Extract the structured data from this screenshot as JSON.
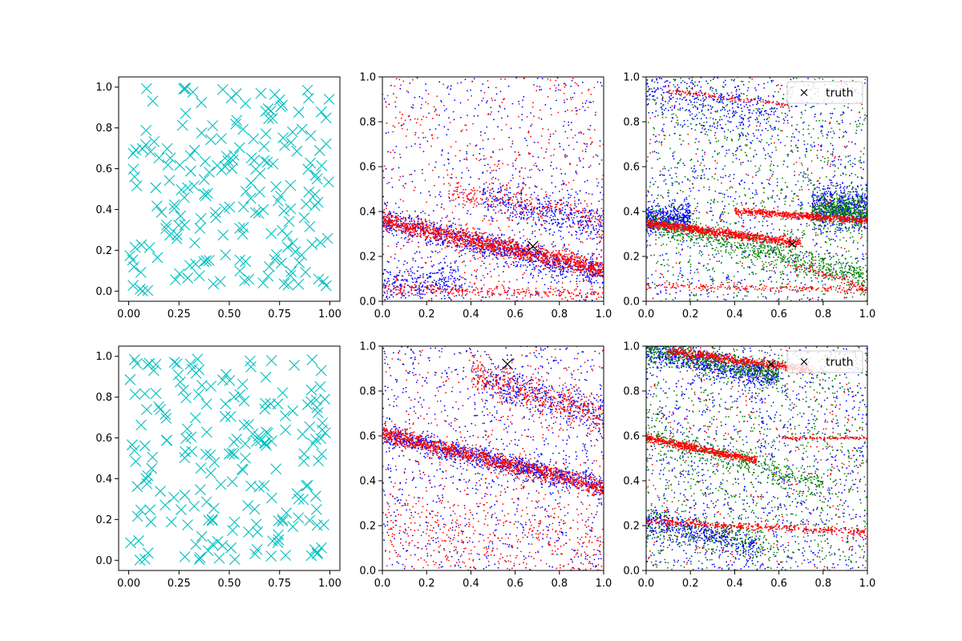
{
  "figure": {
    "legend_label": "truth",
    "truth_marker": "x-marker-icon"
  },
  "chart_data": [
    {
      "type": "scatter",
      "panel": "top-left",
      "marker": "x-cross",
      "color": "#00BFBF",
      "xlim": [
        -0.05,
        1.05
      ],
      "ylim": [
        -0.05,
        1.05
      ],
      "xticks": [
        "0.00",
        "0.25",
        "0.50",
        "0.75",
        "1.00"
      ],
      "yticks": [
        "0.0",
        "0.2",
        "0.4",
        "0.6",
        "0.8",
        "1.0"
      ],
      "note": "approximately 200 uniformly scattered points",
      "points": {
        "count": 200,
        "seed": 11
      }
    },
    {
      "type": "scatter",
      "panel": "top-middle",
      "xlim": [
        0,
        1
      ],
      "ylim": [
        0,
        1
      ],
      "xticks": [
        "0.0",
        "0.2",
        "0.4",
        "0.6",
        "0.8",
        "1.0"
      ],
      "yticks": [
        "0.0",
        "0.2",
        "0.4",
        "0.6",
        "0.8",
        "1.0"
      ],
      "truth": {
        "x": 0.68,
        "y": 0.245
      },
      "series": [
        {
          "name": "blue",
          "color": "#0000FF",
          "count": 2200,
          "bands": [
            {
              "x0": 0.0,
              "x1": 1.0,
              "y0": 0.36,
              "slope": -0.24,
              "sd": 0.03,
              "w": 0.45
            },
            {
              "x0": 0.0,
              "x1": 0.35,
              "y0": 0.08,
              "slope": 0.0,
              "sd": 0.04,
              "w": 0.12
            },
            {
              "x0": 0.45,
              "x1": 1.0,
              "y0": 0.56,
              "slope": -0.22,
              "sd": 0.04,
              "w": 0.15
            },
            {
              "x0": 0.0,
              "x1": 1.0,
              "y0": 0.5,
              "slope": 0.0,
              "sd": 0.3,
              "w": 0.28
            }
          ]
        },
        {
          "name": "red",
          "color": "#FF0000",
          "count": 2400,
          "bands": [
            {
              "x0": 0.0,
              "x1": 1.0,
              "y0": 0.36,
              "slope": -0.22,
              "sd": 0.02,
              "w": 0.55
            },
            {
              "x0": 0.0,
              "x1": 1.0,
              "y0": 0.06,
              "slope": -0.035,
              "sd": 0.012,
              "w": 0.1
            },
            {
              "x0": 0.3,
              "x1": 1.0,
              "y0": 0.56,
              "slope": -0.2,
              "sd": 0.03,
              "w": 0.1
            },
            {
              "x0": 0.0,
              "x1": 1.0,
              "y0": 0.5,
              "slope": 0.0,
              "sd": 0.3,
              "w": 0.25
            }
          ]
        }
      ]
    },
    {
      "type": "scatter",
      "panel": "top-right",
      "xlim": [
        0,
        1
      ],
      "ylim": [
        0,
        1
      ],
      "xticks": [
        "0.0",
        "0.2",
        "0.4",
        "0.6",
        "0.8",
        "1.0"
      ],
      "yticks": [
        "0.0",
        "0.2",
        "0.4",
        "0.6",
        "0.8",
        "1.0"
      ],
      "truth": {
        "x": 0.66,
        "y": 0.255
      },
      "legend": {
        "position": "upper-right",
        "label": "truth"
      },
      "series": [
        {
          "name": "blue",
          "color": "#0000FF",
          "count": 2200,
          "bands": [
            {
              "x0": 0.0,
              "x1": 0.2,
              "y0": 0.37,
              "slope": 0.0,
              "sd": 0.03,
              "w": 0.2
            },
            {
              "x0": 0.75,
              "x1": 1.0,
              "y0": 0.42,
              "slope": 0.0,
              "sd": 0.05,
              "w": 0.25
            },
            {
              "x0": 0.0,
              "x1": 0.6,
              "y0": 0.95,
              "slope": -0.2,
              "sd": 0.06,
              "w": 0.15
            },
            {
              "x0": 0.0,
              "x1": 1.0,
              "y0": 0.5,
              "slope": 0.0,
              "sd": 0.3,
              "w": 0.4
            }
          ]
        },
        {
          "name": "green",
          "color": "#008000",
          "count": 2200,
          "bands": [
            {
              "x0": 0.0,
              "x1": 1.0,
              "y0": 0.36,
              "slope": -0.25,
              "sd": 0.03,
              "w": 0.35
            },
            {
              "x0": 0.75,
              "x1": 1.0,
              "y0": 0.4,
              "slope": 0.0,
              "sd": 0.04,
              "w": 0.25
            },
            {
              "x0": 0.0,
              "x1": 1.0,
              "y0": 0.5,
              "slope": 0.0,
              "sd": 0.3,
              "w": 0.4
            }
          ]
        },
        {
          "name": "red",
          "color": "#FF0000",
          "count": 2000,
          "bands": [
            {
              "x0": 0.0,
              "x1": 0.7,
              "y0": 0.35,
              "slope": -0.13,
              "sd": 0.01,
              "w": 0.45
            },
            {
              "x0": 0.4,
              "x1": 1.0,
              "y0": 0.43,
              "slope": -0.07,
              "sd": 0.008,
              "w": 0.25
            },
            {
              "x0": 0.1,
              "x1": 0.65,
              "y0": 0.95,
              "slope": -0.12,
              "sd": 0.005,
              "w": 0.06
            },
            {
              "x0": 0.0,
              "x1": 1.0,
              "y0": 0.07,
              "slope": -0.02,
              "sd": 0.008,
              "w": 0.1
            },
            {
              "x0": 0.65,
              "x1": 1.0,
              "y0": 0.36,
              "slope": -0.3,
              "sd": 0.01,
              "w": 0.04
            },
            {
              "x0": 0.0,
              "x1": 1.0,
              "y0": 0.5,
              "slope": 0.0,
              "sd": 0.3,
              "w": 0.1
            }
          ]
        }
      ]
    },
    {
      "type": "scatter",
      "panel": "bottom-left",
      "marker": "x-cross",
      "color": "#00BFBF",
      "xlim": [
        -0.05,
        1.05
      ],
      "ylim": [
        -0.05,
        1.05
      ],
      "xticks": [
        "0.00",
        "0.25",
        "0.50",
        "0.75",
        "1.00"
      ],
      "yticks": [
        "0.0",
        "0.2",
        "0.4",
        "0.6",
        "0.8",
        "1.0"
      ],
      "note": "approximately 200 uniformly scattered points",
      "points": {
        "count": 200,
        "seed": 29
      }
    },
    {
      "type": "scatter",
      "panel": "bottom-middle",
      "xlim": [
        0,
        1
      ],
      "ylim": [
        0,
        1
      ],
      "xticks": [
        "0.0",
        "0.2",
        "0.4",
        "0.6",
        "0.8",
        "1.0"
      ],
      "yticks": [
        "0.0",
        "0.2",
        "0.4",
        "0.6",
        "0.8",
        "1.0"
      ],
      "truth": {
        "x": 0.565,
        "y": 0.92
      },
      "series": [
        {
          "name": "blue",
          "color": "#0000FF",
          "count": 2200,
          "bands": [
            {
              "x0": 0.0,
              "x1": 1.0,
              "y0": 0.61,
              "slope": -0.24,
              "sd": 0.025,
              "w": 0.45
            },
            {
              "x0": 0.45,
              "x1": 1.0,
              "y0": 0.99,
              "slope": -0.3,
              "sd": 0.04,
              "w": 0.15
            },
            {
              "x0": 0.0,
              "x1": 1.0,
              "y0": 0.5,
              "slope": 0.0,
              "sd": 0.3,
              "w": 0.4
            }
          ]
        },
        {
          "name": "red",
          "color": "#FF0000",
          "count": 2400,
          "bands": [
            {
              "x0": 0.0,
              "x1": 1.0,
              "y0": 0.61,
              "slope": -0.24,
              "sd": 0.02,
              "w": 0.45
            },
            {
              "x0": 0.4,
              "x1": 1.0,
              "y0": 0.99,
              "slope": -0.3,
              "sd": 0.04,
              "w": 0.2
            },
            {
              "x0": 0.0,
              "x1": 1.0,
              "y0": 0.2,
              "slope": -0.1,
              "sd": 0.1,
              "w": 0.15
            },
            {
              "x0": 0.0,
              "x1": 1.0,
              "y0": 0.5,
              "slope": 0.0,
              "sd": 0.3,
              "w": 0.2
            }
          ]
        }
      ]
    },
    {
      "type": "scatter",
      "panel": "bottom-right",
      "xlim": [
        0,
        1
      ],
      "ylim": [
        0,
        1
      ],
      "xticks": [
        "0.0",
        "0.2",
        "0.4",
        "0.6",
        "0.8",
        "1.0"
      ],
      "yticks": [
        "0.0",
        "0.2",
        "0.4",
        "0.6",
        "0.8",
        "1.0"
      ],
      "truth": {
        "x": 0.565,
        "y": 0.92
      },
      "legend": {
        "position": "upper-right",
        "label": "truth"
      },
      "series": [
        {
          "name": "blue",
          "color": "#0000FF",
          "count": 2200,
          "bands": [
            {
              "x0": 0.0,
              "x1": 0.6,
              "y0": 0.98,
              "slope": -0.2,
              "sd": 0.025,
              "w": 0.3
            },
            {
              "x0": 0.0,
              "x1": 0.5,
              "y0": 0.22,
              "slope": -0.22,
              "sd": 0.03,
              "w": 0.2
            },
            {
              "x0": 0.0,
              "x1": 1.0,
              "y0": 0.5,
              "slope": 0.0,
              "sd": 0.3,
              "w": 0.5
            }
          ]
        },
        {
          "name": "green",
          "color": "#008000",
          "count": 2200,
          "bands": [
            {
              "x0": 0.0,
              "x1": 0.6,
              "y0": 0.99,
              "slope": -0.2,
              "sd": 0.025,
              "w": 0.25
            },
            {
              "x0": 0.0,
              "x1": 0.8,
              "y0": 0.6,
              "slope": -0.28,
              "sd": 0.03,
              "w": 0.2
            },
            {
              "x0": 0.0,
              "x1": 0.6,
              "y0": 0.22,
              "slope": -0.2,
              "sd": 0.04,
              "w": 0.1
            },
            {
              "x0": 0.0,
              "x1": 1.0,
              "y0": 0.5,
              "slope": 0.0,
              "sd": 0.3,
              "w": 0.45
            }
          ]
        },
        {
          "name": "red",
          "color": "#FF0000",
          "count": 2000,
          "bands": [
            {
              "x0": 0.1,
              "x1": 0.75,
              "y0": 0.99,
              "slope": -0.13,
              "sd": 0.01,
              "w": 0.3
            },
            {
              "x0": 0.0,
              "x1": 0.5,
              "y0": 0.59,
              "slope": -0.2,
              "sd": 0.008,
              "w": 0.3
            },
            {
              "x0": 0.6,
              "x1": 1.0,
              "y0": 0.59,
              "slope": 0.0,
              "sd": 0.003,
              "w": 0.05
            },
            {
              "x0": 0.0,
              "x1": 1.0,
              "y0": 0.22,
              "slope": -0.05,
              "sd": 0.008,
              "w": 0.2
            },
            {
              "x0": 0.0,
              "x1": 1.0,
              "y0": 0.5,
              "slope": 0.0,
              "sd": 0.3,
              "w": 0.15
            }
          ]
        }
      ]
    }
  ]
}
